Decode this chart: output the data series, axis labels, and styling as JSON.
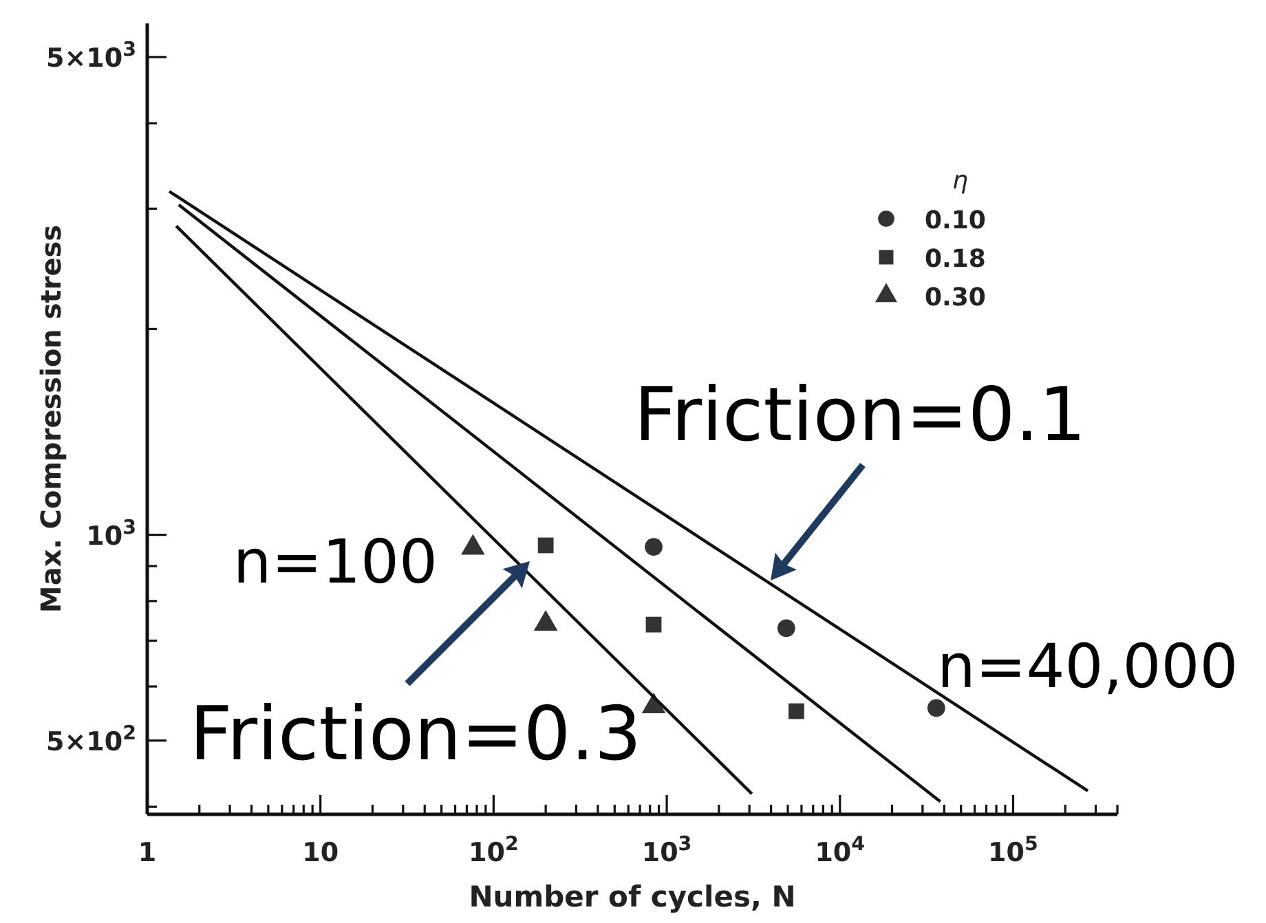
{
  "chart_data": {
    "type": "scatter",
    "xlabel": "Number of cycles, N",
    "ylabel": "Max. Compression stress",
    "legend_title": "η",
    "legend": "top right",
    "log": "xy",
    "grid": false,
    "xlim": [
      1,
      400000
    ],
    "ylim": [
      390,
      5600
    ],
    "xticks": [
      1,
      10,
      {
        "value": 100,
        "label": "10$^{2}$"
      },
      {
        "value": 1000,
        "label": "10$^{3}$"
      },
      {
        "value": 10000,
        "label": "10$^{4}$"
      },
      {
        "value": 100000,
        "label": "10$^{5}$"
      },
      {
        "value": 2,
        "label": null
      },
      {
        "value": 3,
        "label": null
      },
      {
        "value": 4,
        "label": null
      },
      {
        "value": 5,
        "label": null
      },
      {
        "value": 6,
        "label": null
      },
      {
        "value": 7,
        "label": null
      },
      {
        "value": 8,
        "label": null
      },
      {
        "value": 9,
        "label": null
      },
      {
        "value": 20,
        "label": null
      },
      {
        "value": 30,
        "label": null
      },
      {
        "value": 40,
        "label": null
      },
      {
        "value": 50,
        "label": null
      },
      {
        "value": 60,
        "label": null
      },
      {
        "value": 70,
        "label": null
      },
      {
        "value": 80,
        "label": null
      },
      {
        "value": 90,
        "label": null
      },
      {
        "value": 200,
        "label": null
      },
      {
        "value": 300,
        "label": null
      },
      {
        "value": 400,
        "label": null
      },
      {
        "value": 500,
        "label": null
      },
      {
        "value": 600,
        "label": null
      },
      {
        "value": 700,
        "label": null
      },
      {
        "value": 800,
        "label": null
      },
      {
        "value": 900,
        "label": null
      },
      {
        "value": 2000,
        "label": null
      },
      {
        "value": 3000,
        "label": null
      },
      {
        "value": 4000,
        "label": null
      },
      {
        "value": 5000,
        "label": null
      },
      {
        "value": 6000,
        "label": null
      },
      {
        "value": 7000,
        "label": null
      },
      {
        "value": 8000,
        "label": null
      },
      {
        "value": 9000,
        "label": null
      },
      {
        "value": 20000,
        "label": null
      },
      {
        "value": 30000,
        "label": null
      },
      {
        "value": 40000,
        "label": null
      },
      {
        "value": 50000,
        "label": null
      },
      {
        "value": 60000,
        "label": null
      },
      {
        "value": 70000,
        "label": null
      },
      {
        "value": 80000,
        "label": null
      },
      {
        "value": 90000,
        "label": null
      },
      {
        "value": 200000,
        "label": null
      },
      {
        "value": 300000,
        "label": null
      },
      {
        "value": 400000,
        "label": null
      }
    ],
    "yticks": [
      {
        "value": 500,
        "label": "5×10$^{2}$"
      },
      {
        "value": 1000,
        "label": "10$^{3}$"
      },
      {
        "value": 5000,
        "label": "5×10$^{3}$"
      },
      {
        "value": 400,
        "label": null
      },
      {
        "value": 600,
        "label": null
      },
      {
        "value": 700,
        "label": null
      },
      {
        "value": 800,
        "label": null
      },
      {
        "value": 900,
        "label": null
      },
      {
        "value": 2000,
        "label": null
      },
      {
        "value": 3000,
        "label": null
      },
      {
        "value": 4000,
        "label": null
      }
    ],
    "series": [
      {
        "name": "0.10",
        "marker": "circle",
        "color": "#333333",
        "x": [
          840,
          4900,
          36000
        ],
        "values": [
          960,
          730,
          558
        ]
      },
      {
        "name": "0.18",
        "marker": "square",
        "color": "#333333",
        "x": [
          200,
          840,
          5600
        ],
        "values": [
          965,
          739,
          552
        ]
      },
      {
        "name": "0.30",
        "marker": "triangle",
        "color": "#333333",
        "x": [
          76,
          200,
          840
        ],
        "values": [
          957,
          741,
          561
        ]
      },
      {
        "type": "line",
        "color": "#111111",
        "x": [
          1.34,
          270000
        ],
        "values": [
          3180,
          422
        ]
      },
      {
        "type": "line",
        "color": "#111111",
        "x": [
          1.52,
          38000
        ],
        "values": [
          3040,
          407
        ]
      },
      {
        "type": "line",
        "color": "#111111",
        "x": [
          1.47,
          3100
        ],
        "values": [
          2830,
          418
        ]
      }
    ],
    "annotations": [
      "Friction=0.1",
      "Friction=0.3",
      {
        "text": "n=100",
        "x": 76,
        "y": 957
      },
      {
        "text": "n=40,000",
        "x": 36000,
        "y": 558
      }
    ]
  }
}
